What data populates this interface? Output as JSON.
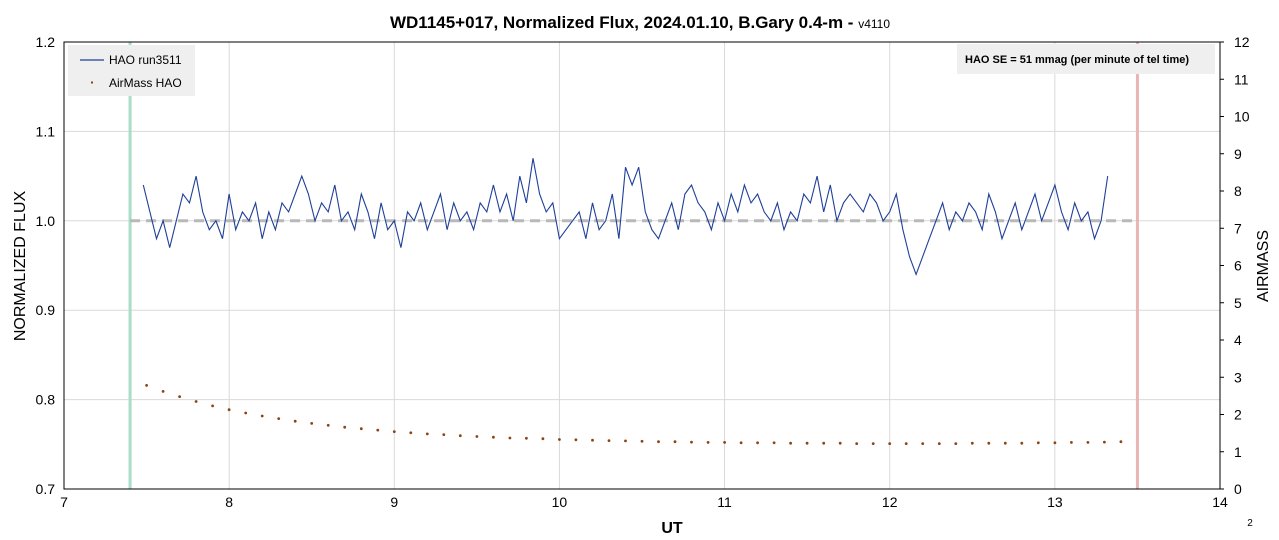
{
  "chart_data": {
    "type": "line",
    "title": "WD1145+017, Normalized Flux, 2024.01.10, B.Gary 0.4-m - ",
    "title_suffix": "v4110",
    "xlabel": "UT",
    "ylabel": "NORMALIZED FLUX",
    "y2label": "AIRMASS",
    "xlim": [
      7,
      14
    ],
    "ylim": [
      0.7,
      1.2
    ],
    "y2lim": [
      0,
      12
    ],
    "x_ticks": [
      "7",
      "8",
      "9",
      "10",
      "11",
      "12",
      "13",
      "14"
    ],
    "y_ticks": [
      "0.7",
      "0.8",
      "0.9",
      "1.0",
      "1.1",
      "1.2"
    ],
    "y2_ticks": [
      "0",
      "1",
      "2",
      "3",
      "4",
      "5",
      "6",
      "7",
      "8",
      "9",
      "10",
      "11",
      "12"
    ],
    "grid": true,
    "legend_position": "top-left",
    "legend": [
      "HAO run3511",
      "AirMass HAO"
    ],
    "annotation": "HAO SE = 51 mmag (per minute of tel time)",
    "page_number": "2",
    "reference_level": 1.0,
    "start_marker_ut": 7.4,
    "end_marker_ut": 13.5,
    "colors": {
      "flux": "#1f3f99",
      "airmass": "#8b4513",
      "reference": "#b8b8b8",
      "start_marker": "#a8ddc8",
      "end_marker": "#e8b4b4",
      "grid": "#d9d9d9"
    },
    "series": [
      {
        "name": "HAO run3511",
        "axis": "left",
        "x": [
          7.48,
          7.52,
          7.56,
          7.6,
          7.64,
          7.68,
          7.72,
          7.76,
          7.8,
          7.84,
          7.88,
          7.92,
          7.96,
          8.0,
          8.04,
          8.08,
          8.12,
          8.16,
          8.2,
          8.24,
          8.28,
          8.32,
          8.36,
          8.4,
          8.44,
          8.48,
          8.52,
          8.56,
          8.6,
          8.64,
          8.68,
          8.72,
          8.76,
          8.8,
          8.84,
          8.88,
          8.92,
          8.96,
          9.0,
          9.04,
          9.08,
          9.12,
          9.16,
          9.2,
          9.24,
          9.28,
          9.32,
          9.36,
          9.4,
          9.44,
          9.48,
          9.52,
          9.56,
          9.6,
          9.64,
          9.68,
          9.72,
          9.76,
          9.8,
          9.84,
          9.88,
          9.92,
          9.96,
          10.0,
          10.04,
          10.08,
          10.12,
          10.16,
          10.2,
          10.24,
          10.28,
          10.32,
          10.36,
          10.4,
          10.44,
          10.48,
          10.52,
          10.56,
          10.6,
          10.64,
          10.68,
          10.72,
          10.76,
          10.8,
          10.84,
          10.88,
          10.92,
          10.96,
          11.0,
          11.04,
          11.08,
          11.12,
          11.16,
          11.2,
          11.24,
          11.28,
          11.32,
          11.36,
          11.4,
          11.44,
          11.48,
          11.52,
          11.56,
          11.6,
          11.64,
          11.68,
          11.72,
          11.76,
          11.8,
          11.84,
          11.88,
          11.92,
          11.96,
          12.0,
          12.04,
          12.08,
          12.12,
          12.16,
          12.2,
          12.24,
          12.28,
          12.32,
          12.36,
          12.4,
          12.44,
          12.48,
          12.52,
          12.56,
          12.6,
          12.64,
          12.68,
          12.72,
          12.76,
          12.8,
          12.84,
          12.88,
          12.92,
          12.96,
          13.0,
          13.04,
          13.08,
          13.12,
          13.16,
          13.2,
          13.24,
          13.28,
          13.32
        ],
        "y": [
          1.04,
          1.01,
          0.98,
          1.0,
          0.97,
          1.0,
          1.03,
          1.02,
          1.05,
          1.01,
          0.99,
          1.0,
          0.98,
          1.03,
          0.99,
          1.01,
          1.0,
          1.02,
          0.98,
          1.01,
          0.99,
          1.02,
          1.01,
          1.03,
          1.05,
          1.03,
          1.0,
          1.02,
          1.01,
          1.04,
          1.0,
          1.01,
          0.99,
          1.03,
          1.01,
          0.98,
          1.02,
          0.99,
          1.0,
          0.97,
          1.01,
          1.0,
          1.02,
          0.99,
          1.01,
          1.03,
          0.99,
          1.02,
          1.0,
          1.01,
          0.99,
          1.02,
          1.01,
          1.04,
          1.01,
          1.03,
          1.0,
          1.05,
          1.02,
          1.07,
          1.03,
          1.01,
          1.02,
          0.98,
          0.99,
          1.0,
          1.01,
          0.98,
          1.02,
          0.99,
          1.0,
          1.03,
          0.98,
          1.06,
          1.04,
          1.06,
          1.01,
          0.99,
          0.98,
          1.0,
          1.02,
          0.99,
          1.03,
          1.04,
          1.02,
          1.01,
          0.99,
          1.02,
          1.0,
          1.03,
          1.01,
          1.04,
          1.02,
          1.03,
          1.01,
          1.0,
          1.02,
          0.99,
          1.01,
          1.0,
          1.03,
          1.02,
          1.05,
          1.01,
          1.04,
          1.0,
          1.02,
          1.03,
          1.02,
          1.01,
          1.03,
          1.02,
          1.0,
          1.01,
          1.03,
          0.99,
          0.96,
          0.94,
          0.96,
          0.98,
          1.0,
          1.02,
          0.99,
          1.01,
          1.0,
          1.02,
          1.01,
          0.99,
          1.03,
          1.01,
          0.98,
          1.0,
          1.02,
          0.99,
          1.01,
          1.03,
          1.0,
          1.02,
          1.04,
          1.01,
          0.99,
          1.02,
          1.0,
          1.01,
          0.98,
          1.0,
          1.05
        ]
      },
      {
        "name": "AirMass HAO",
        "axis": "right",
        "x": [
          7.5,
          7.6,
          7.7,
          7.8,
          7.9,
          8.0,
          8.1,
          8.2,
          8.3,
          8.4,
          8.5,
          8.6,
          8.7,
          8.8,
          8.9,
          9.0,
          9.1,
          9.2,
          9.3,
          9.4,
          9.5,
          9.6,
          9.7,
          9.8,
          9.9,
          10.0,
          10.1,
          10.2,
          10.3,
          10.4,
          10.5,
          10.6,
          10.7,
          10.8,
          10.9,
          11.0,
          11.1,
          11.2,
          11.3,
          11.4,
          11.5,
          11.6,
          11.7,
          11.8,
          11.9,
          12.0,
          12.1,
          12.2,
          12.3,
          12.4,
          12.5,
          12.6,
          12.7,
          12.8,
          12.9,
          13.0,
          13.1,
          13.2,
          13.3,
          13.4
        ],
        "y": [
          2.78,
          2.62,
          2.48,
          2.35,
          2.23,
          2.13,
          2.04,
          1.96,
          1.89,
          1.82,
          1.76,
          1.71,
          1.66,
          1.62,
          1.58,
          1.54,
          1.51,
          1.48,
          1.46,
          1.43,
          1.41,
          1.39,
          1.37,
          1.36,
          1.35,
          1.33,
          1.32,
          1.31,
          1.3,
          1.29,
          1.28,
          1.27,
          1.27,
          1.26,
          1.25,
          1.25,
          1.24,
          1.24,
          1.24,
          1.23,
          1.23,
          1.23,
          1.23,
          1.22,
          1.22,
          1.22,
          1.22,
          1.22,
          1.22,
          1.22,
          1.23,
          1.23,
          1.23,
          1.23,
          1.24,
          1.24,
          1.25,
          1.25,
          1.26,
          1.27
        ]
      }
    ]
  }
}
